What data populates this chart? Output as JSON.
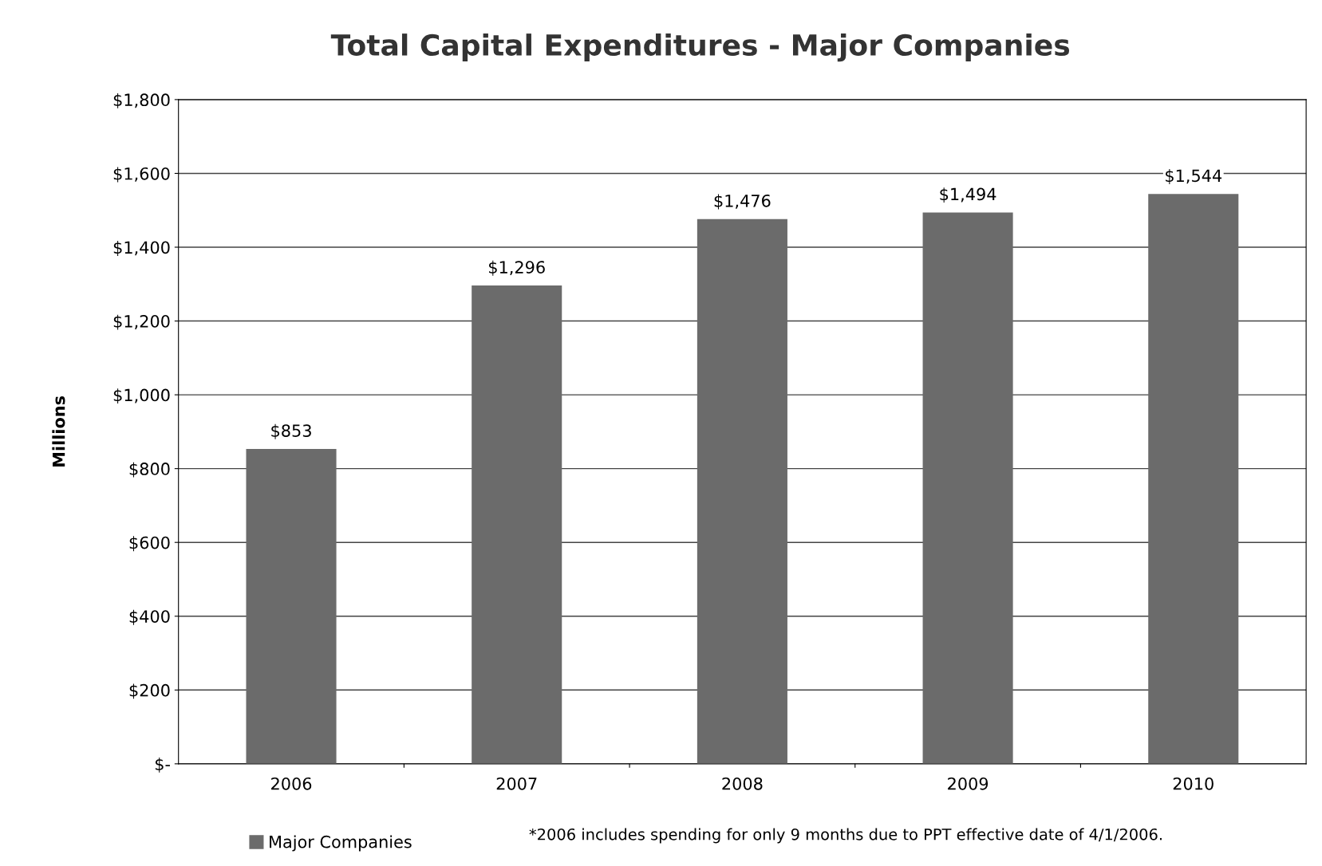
{
  "chart_data": {
    "type": "bar",
    "title": "Total Capital Expenditures - Major Companies",
    "ylabel": "Millions",
    "categories": [
      "2006",
      "2007",
      "2008",
      "2009",
      "2010"
    ],
    "series": [
      {
        "name": "Major Companies",
        "color": "#6b6b6b",
        "values": [
          853,
          1296,
          1476,
          1494,
          1544
        ],
        "value_labels": [
          "$853",
          "$1,296",
          "$1,476",
          "$1,494",
          "$1,544"
        ]
      }
    ],
    "ylim": [
      0,
      1800
    ],
    "yticks": [
      {
        "value": 0,
        "label": "$-"
      },
      {
        "value": 200,
        "label": "$200"
      },
      {
        "value": 400,
        "label": "$400"
      },
      {
        "value": 600,
        "label": "$600"
      },
      {
        "value": 800,
        "label": "$800"
      },
      {
        "value": 1000,
        "label": "$1,000"
      },
      {
        "value": 1200,
        "label": "$1,200"
      },
      {
        "value": 1400,
        "label": "$1,400"
      },
      {
        "value": 1600,
        "label": "$1,600"
      },
      {
        "value": 1800,
        "label": "$1,800"
      }
    ],
    "grid": "y",
    "legend": "bottom left",
    "annotations": [
      "*2006 includes spending for only 9 months due to PPT effective date of 4/1/2006."
    ]
  }
}
